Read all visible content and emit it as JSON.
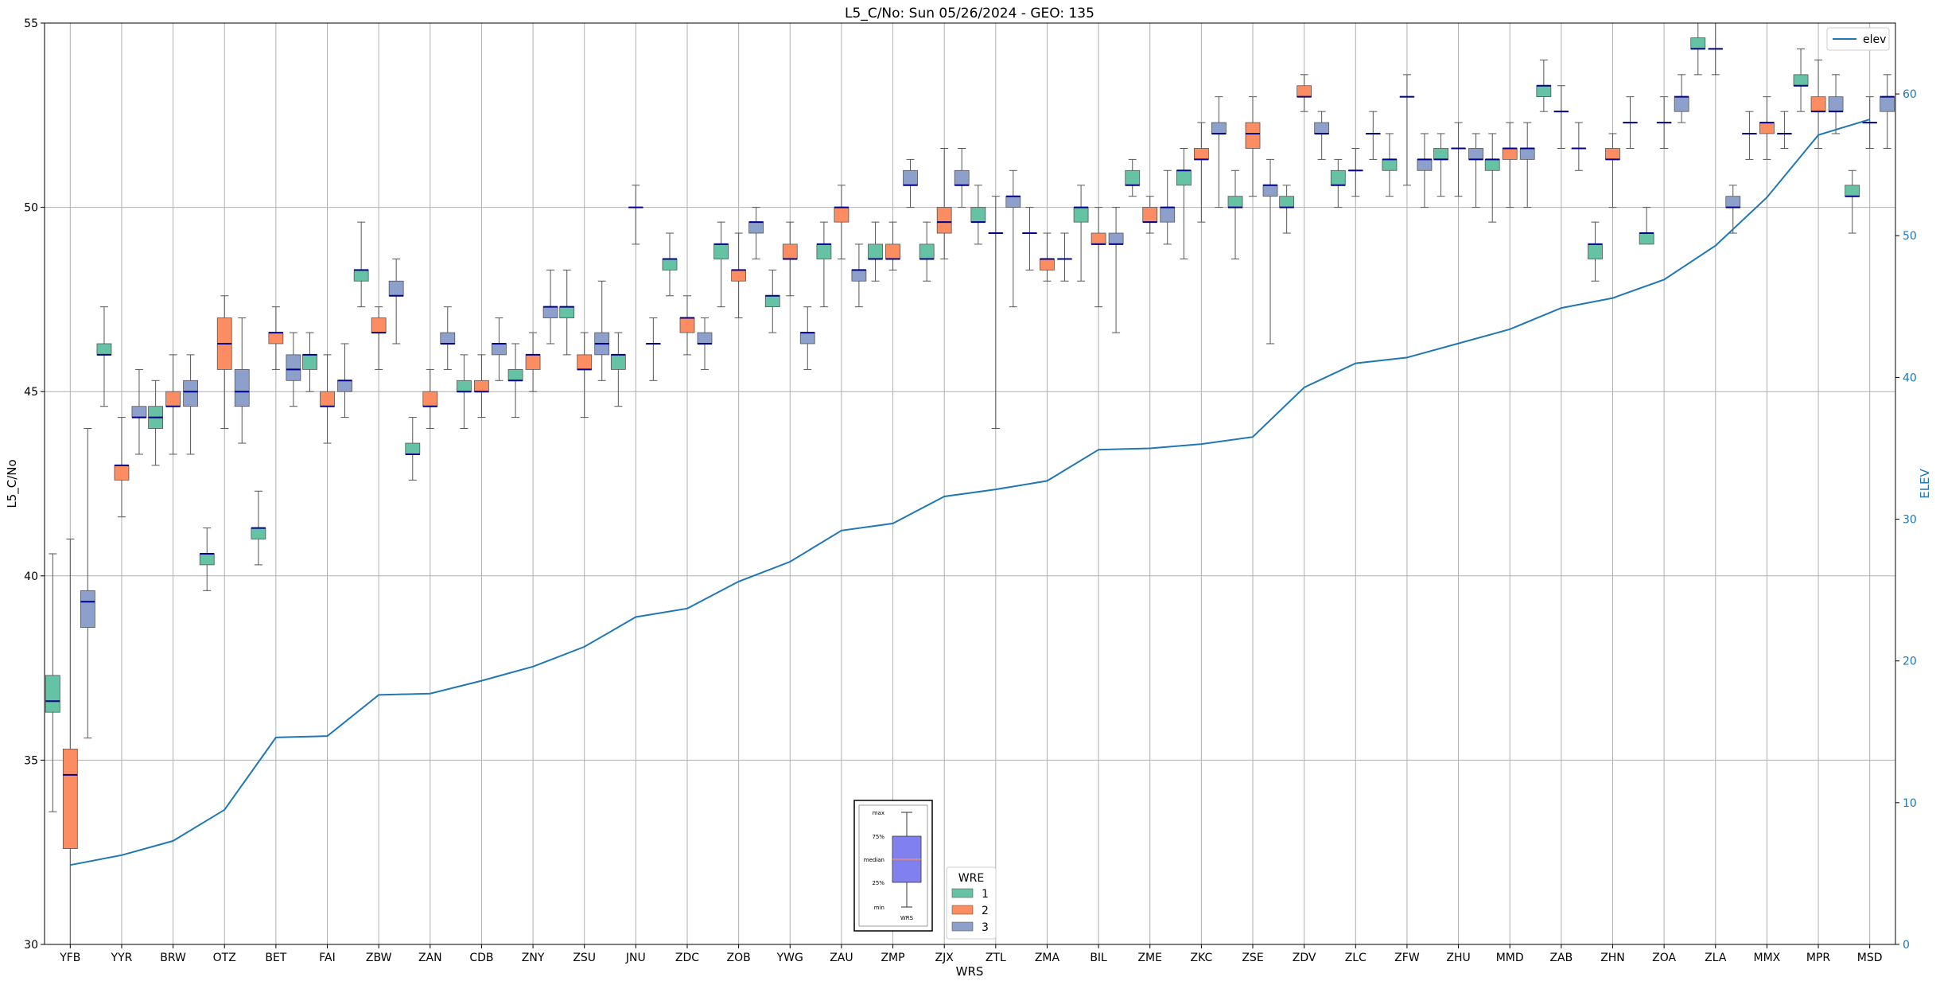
{
  "chart_data": {
    "type": "box",
    "title": "L5_C/No: Sun 05/26/2024 - GEO: 135",
    "xlabel": "WRS",
    "ylabel": "L5_C/No",
    "y2label": "ELEV",
    "ylim": [
      30,
      55
    ],
    "y2lim": [
      0,
      65
    ],
    "yticks": [
      30,
      35,
      40,
      45,
      50,
      55
    ],
    "y2ticks": [
      0,
      10,
      20,
      30,
      40,
      50,
      60
    ],
    "grid": true,
    "colors": {
      "1": "#66c2a5",
      "2": "#fc8d62",
      "3": "#8da0cb",
      "median": "#00008b",
      "elev": "#1f77b4",
      "whisker": "#555555",
      "grid": "#b0b0b0"
    },
    "categories": [
      "YFB",
      "YYR",
      "BRW",
      "OTZ",
      "BET",
      "FAI",
      "ZBW",
      "ZAN",
      "CDB",
      "ZNY",
      "ZSU",
      "JNU",
      "ZDC",
      "ZOB",
      "YWG",
      "ZAU",
      "ZMP",
      "ZJX",
      "ZTL",
      "ZMA",
      "BIL",
      "ZME",
      "ZKC",
      "ZSE",
      "ZDV",
      "ZLC",
      "ZFW",
      "ZHU",
      "MMD",
      "ZAB",
      "ZHN",
      "ZOA",
      "ZLA",
      "MMX",
      "MPR",
      "MSD"
    ],
    "boxes": [
      [
        [
          33.6,
          36.3,
          36.6,
          37.3,
          40.6
        ],
        [
          30,
          32.6,
          34.6,
          35.3,
          41
        ],
        [
          35.6,
          38.6,
          39.3,
          39.6,
          44
        ]
      ],
      [
        [
          44.6,
          46,
          46,
          46.3,
          47.3
        ],
        [
          41.6,
          42.6,
          43,
          43,
          44.3
        ],
        [
          43.3,
          44.3,
          44.3,
          44.6,
          45.6
        ]
      ],
      [
        [
          43,
          44,
          44.3,
          44.6,
          45.3
        ],
        [
          43.3,
          44.6,
          44.6,
          45,
          46
        ],
        [
          43.3,
          44.6,
          45,
          45.3,
          46
        ]
      ],
      [
        [
          39.6,
          40.3,
          40.6,
          40.6,
          41.3
        ],
        [
          44,
          45.6,
          46.3,
          47,
          47.6
        ],
        [
          43.6,
          44.6,
          45,
          45.6,
          47
        ]
      ],
      [
        [
          40.3,
          41,
          41.3,
          41.3,
          42.3
        ],
        [
          45.6,
          46.3,
          46.6,
          46.6,
          47.3
        ],
        [
          44.6,
          45.3,
          45.6,
          46,
          46.6
        ]
      ],
      [
        [
          45,
          45.6,
          46,
          46,
          46.6
        ],
        [
          43.6,
          44.6,
          44.6,
          45,
          46
        ],
        [
          44.3,
          45,
          45.3,
          45.3,
          46.3
        ]
      ],
      [
        [
          47.3,
          48,
          48.3,
          48.3,
          49.6
        ],
        [
          45.6,
          46.6,
          46.6,
          47,
          47.3
        ],
        [
          46.3,
          47.6,
          47.6,
          48,
          48.6
        ]
      ],
      [
        [
          42.6,
          43.3,
          43.3,
          43.6,
          44.3
        ],
        [
          44,
          44.6,
          44.6,
          45,
          45.6
        ],
        [
          45.6,
          46.3,
          46.3,
          46.6,
          47.3
        ]
      ],
      [
        [
          44,
          45,
          45,
          45.3,
          46
        ],
        [
          44.3,
          45,
          45,
          45.3,
          46
        ],
        [
          45.3,
          46,
          46.3,
          46.3,
          47
        ]
      ],
      [
        [
          44.3,
          45.3,
          45.3,
          45.6,
          46.3
        ],
        [
          45,
          45.6,
          46,
          46,
          46.6
        ],
        [
          46.3,
          47,
          47.3,
          47.3,
          48.3
        ]
      ],
      [
        [
          46,
          47,
          47.3,
          47.3,
          48.3
        ],
        [
          44.3,
          45.6,
          45.6,
          46,
          46.6
        ],
        [
          45.3,
          46,
          46.3,
          46.6,
          48
        ]
      ],
      [
        [
          44.6,
          45.6,
          46,
          46,
          46.6
        ],
        [
          49,
          50,
          50,
          50,
          50.6
        ],
        [
          45.3,
          46.3,
          46.3,
          46.3,
          47
        ]
      ],
      [
        [
          47.6,
          48.3,
          48.6,
          48.6,
          49.3
        ],
        [
          46,
          46.6,
          47,
          47,
          47.6
        ],
        [
          45.6,
          46.3,
          46.3,
          46.6,
          47
        ]
      ],
      [
        [
          47.3,
          48.6,
          49,
          49,
          49.6
        ],
        [
          47,
          48,
          48.3,
          48.3,
          49.3
        ],
        [
          48.6,
          49.3,
          49.6,
          49.6,
          50
        ]
      ],
      [
        [
          46.6,
          47.3,
          47.6,
          47.6,
          48.3
        ],
        [
          47.6,
          48.6,
          48.6,
          49,
          49.6
        ],
        [
          45.6,
          46.3,
          46.6,
          46.6,
          47.3
        ]
      ],
      [
        [
          47.3,
          48.6,
          49,
          49,
          49.6
        ],
        [
          48.6,
          49.6,
          50,
          50,
          50.6
        ],
        [
          47.3,
          48,
          48.3,
          48.3,
          49
        ]
      ],
      [
        [
          48,
          48.6,
          48.6,
          49,
          49.6
        ],
        [
          48.3,
          48.6,
          48.6,
          49,
          49.6
        ],
        [
          50,
          50.6,
          50.6,
          51,
          51.3
        ]
      ],
      [
        [
          48,
          48.6,
          48.6,
          49,
          49.6
        ],
        [
          48.6,
          49.3,
          49.6,
          50,
          51.6
        ],
        [
          50,
          50.6,
          50.6,
          51,
          51.6
        ]
      ],
      [
        [
          49,
          49.6,
          49.6,
          50,
          50.6
        ],
        [
          44,
          49.3,
          49.3,
          49.3,
          50.3
        ],
        [
          47.3,
          50,
          50.3,
          50.3,
          51
        ]
      ],
      [
        [
          48.3,
          49.3,
          49.3,
          49.3,
          50
        ],
        [
          48,
          48.3,
          48.6,
          48.6,
          49.3
        ],
        [
          48,
          48.6,
          48.6,
          48.6,
          49.3
        ]
      ],
      [
        [
          48,
          49.6,
          50,
          50,
          50.6
        ],
        [
          47.3,
          49,
          49,
          49.3,
          50
        ],
        [
          46.6,
          49,
          49,
          49.3,
          50
        ]
      ],
      [
        [
          50.3,
          50.6,
          50.6,
          51,
          51.3
        ],
        [
          49.3,
          49.6,
          49.6,
          50,
          50.3
        ],
        [
          49,
          49.6,
          50,
          50,
          51
        ]
      ],
      [
        [
          48.6,
          50.6,
          51,
          51,
          51.6
        ],
        [
          49.6,
          51.3,
          51.3,
          51.6,
          52.3
        ],
        [
          50,
          52,
          52,
          52.3,
          53
        ]
      ],
      [
        [
          48.6,
          50,
          50,
          50.3,
          51
        ],
        [
          50.3,
          51.6,
          52,
          52.3,
          53
        ],
        [
          46.3,
          50.3,
          50.6,
          50.6,
          51.3
        ]
      ],
      [
        [
          49.3,
          50,
          50,
          50.3,
          50.6
        ],
        [
          52.6,
          53,
          53,
          53.3,
          53.6
        ],
        [
          51.3,
          52,
          52,
          52.3,
          52.6
        ]
      ],
      [
        [
          50,
          50.6,
          50.6,
          51,
          51.3
        ],
        [
          50.3,
          51,
          51,
          51,
          51.6
        ],
        [
          51.3,
          52,
          52,
          52,
          52.6
        ]
      ],
      [
        [
          50.3,
          51,
          51.3,
          51.3,
          52
        ],
        [
          50.6,
          53,
          53,
          53,
          53.6
        ],
        [
          50,
          51,
          51.3,
          51.3,
          52
        ]
      ],
      [
        [
          50.3,
          51.3,
          51.3,
          51.6,
          52
        ],
        [
          50.3,
          51.6,
          51.6,
          51.6,
          52.3
        ],
        [
          50,
          51.3,
          51.3,
          51.6,
          52
        ]
      ],
      [
        [
          49.6,
          51,
          51.3,
          51.3,
          52
        ],
        [
          50,
          51.3,
          51.6,
          51.6,
          52.3
        ],
        [
          50,
          51.3,
          51.6,
          51.6,
          52.3
        ]
      ],
      [
        [
          52.6,
          53,
          53.3,
          53.3,
          54
        ],
        [
          51.6,
          52.6,
          52.6,
          52.6,
          53.3
        ],
        [
          51,
          51.6,
          51.6,
          51.6,
          52.3
        ]
      ],
      [
        [
          48,
          48.6,
          49,
          49,
          49.6
        ],
        [
          50,
          51.3,
          51.3,
          51.6,
          52
        ],
        [
          51.6,
          52.3,
          52.3,
          52.3,
          53
        ]
      ],
      [
        [
          49.3,
          49,
          49.3,
          49.3,
          50
        ],
        [
          51.6,
          52.3,
          52.3,
          52.3,
          53
        ],
        [
          52.3,
          52.6,
          53,
          53,
          53.6
        ]
      ],
      [
        [
          53.6,
          54.3,
          54.3,
          54.6,
          55
        ],
        [
          53.6,
          54.3,
          54.3,
          54.3,
          55
        ],
        [
          49.3,
          50,
          50,
          50.3,
          50.6
        ]
      ],
      [
        [
          51.3,
          52,
          52,
          52,
          52.6
        ],
        [
          51.3,
          52,
          52.3,
          52.3,
          53
        ],
        [
          51.6,
          52,
          52,
          52,
          52.6
        ]
      ],
      [
        [
          52.6,
          53.3,
          53.3,
          53.6,
          54.3
        ],
        [
          51.6,
          52.6,
          52.6,
          53,
          54
        ],
        [
          52,
          52.6,
          52.6,
          53,
          53.6
        ]
      ],
      [
        [
          49.3,
          50.3,
          50.3,
          50.6,
          51
        ],
        [
          51.6,
          52.3,
          52.3,
          52.3,
          53
        ],
        [
          51.6,
          52.6,
          53,
          53,
          53.6
        ]
      ]
    ],
    "elev_series": {
      "name": "elev",
      "values": [
        5.6,
        6.3,
        7.3,
        9.5,
        14.6,
        14.7,
        17.6,
        17.7,
        18.6,
        19.6,
        21.0,
        23.1,
        23.7,
        25.6,
        27.0,
        29.2,
        29.7,
        31.6,
        32.1,
        32.7,
        34.9,
        35.0,
        35.3,
        35.8,
        39.3,
        41.0,
        41.4,
        42.4,
        43.4,
        44.9,
        45.6,
        46.9,
        49.3,
        52.7,
        57.1,
        58.2
      ]
    },
    "legend": {
      "title": "WRE",
      "entries": [
        "1",
        "2",
        "3"
      ],
      "placement": "bottom-center"
    },
    "elev_legend": {
      "entries": [
        "elev"
      ],
      "placement": "top-right"
    },
    "key": {
      "labels": [
        "max",
        "75%",
        "median",
        "25%",
        "min"
      ],
      "xlabel": "WRS"
    }
  }
}
